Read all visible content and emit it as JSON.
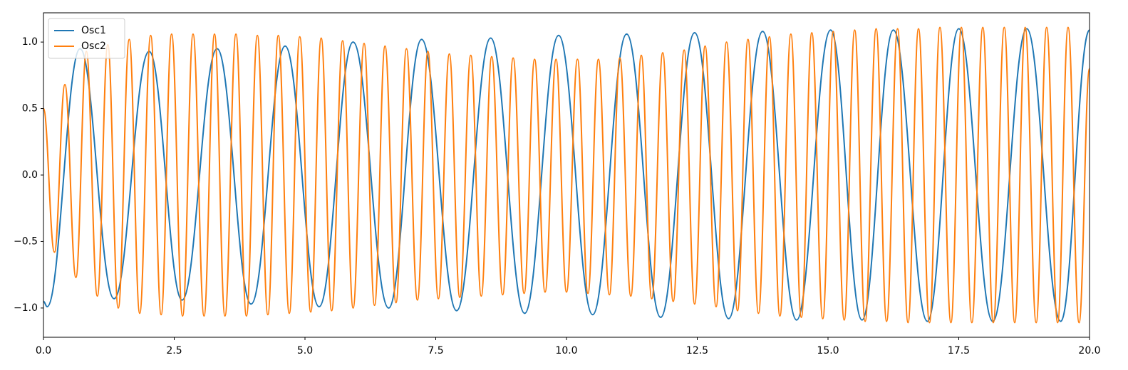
{
  "chart_data": {
    "type": "line",
    "xlim": [
      0,
      20
    ],
    "xticks": [
      {
        "value": 0,
        "label": "0.0"
      },
      2.5,
      {
        "value": 5,
        "label": "5.0"
      },
      7.5,
      {
        "value": 10,
        "label": "10.0"
      },
      12.5,
      {
        "value": 15,
        "label": "15.0"
      },
      17.5,
      {
        "value": 20,
        "label": "20.0"
      }
    ],
    "ylim": [
      -1.22,
      1.22
    ],
    "yticks": [
      {
        "value": -1,
        "label": "−1.0"
      },
      {
        "value": -0.5,
        "label": "−0.5"
      },
      {
        "value": 0,
        "label": "0.0"
      },
      0.5,
      {
        "value": 1,
        "label": "1.0"
      }
    ],
    "legend": "upper left",
    "series": [
      {
        "name": "Osc1",
        "color": "#1f77b4",
        "x": [
          0,
          0.07,
          0.7,
          1.35,
          2.02,
          2.65,
          3.32,
          3.97,
          4.62,
          5.27,
          5.92,
          6.6,
          7.23,
          7.9,
          8.55,
          9.2,
          9.85,
          10.5,
          11.15,
          11.8,
          12.45,
          13.1,
          13.75,
          14.4,
          15.05,
          15.65,
          16.25,
          16.9,
          17.5,
          18.15,
          18.8,
          19.45,
          20.0
        ],
        "values": [
          -0.95,
          -0.99,
          0.95,
          -0.93,
          0.93,
          -0.94,
          0.95,
          -0.97,
          0.97,
          -0.99,
          1.0,
          -1.0,
          1.02,
          -1.02,
          1.03,
          -1.04,
          1.05,
          -1.05,
          1.06,
          -1.07,
          1.07,
          -1.08,
          1.08,
          -1.09,
          1.09,
          -1.09,
          1.09,
          -1.1,
          1.1,
          -1.1,
          1.1,
          -1.1,
          1.09
        ]
      },
      {
        "name": "Osc2",
        "color": "#ff7f0e",
        "x": [
          0,
          0.21,
          0.41,
          0.62,
          0.82,
          1.03,
          1.23,
          1.43,
          1.64,
          1.84,
          2.05,
          2.25,
          2.45,
          2.66,
          2.86,
          3.07,
          3.27,
          3.47,
          3.68,
          3.88,
          4.09,
          4.29,
          4.49,
          4.7,
          4.9,
          5.11,
          5.31,
          5.51,
          5.72,
          5.92,
          6.13,
          6.33,
          6.53,
          6.74,
          6.94,
          7.15,
          7.35,
          7.55,
          7.76,
          7.96,
          8.17,
          8.37,
          8.57,
          8.78,
          8.98,
          9.19,
          9.39,
          9.59,
          9.8,
          10.0,
          10.21,
          10.41,
          10.61,
          10.82,
          11.02,
          11.23,
          11.43,
          11.63,
          11.84,
          12.04,
          12.25,
          12.45,
          12.65,
          12.86,
          13.06,
          13.27,
          13.47,
          13.67,
          13.88,
          14.08,
          14.29,
          14.49,
          14.69,
          14.9,
          15.1,
          15.31,
          15.51,
          15.71,
          15.92,
          16.12,
          16.33,
          16.53,
          16.73,
          16.94,
          17.14,
          17.35,
          17.55,
          17.75,
          17.96,
          18.16,
          18.37,
          18.57,
          18.77,
          18.98,
          19.18,
          19.39,
          19.59,
          19.8,
          20.0
        ],
        "values": [
          0.5,
          -0.58,
          0.68,
          -0.77,
          0.93,
          -0.91,
          0.98,
          -1.0,
          1.02,
          -1.04,
          1.05,
          -1.05,
          1.06,
          -1.06,
          1.06,
          -1.06,
          1.06,
          -1.06,
          1.06,
          -1.06,
          1.05,
          -1.05,
          1.05,
          -1.04,
          1.04,
          -1.03,
          1.03,
          -1.02,
          1.01,
          -1.0,
          0.99,
          -0.98,
          0.97,
          -0.96,
          0.95,
          -0.94,
          0.93,
          -0.93,
          0.91,
          -0.92,
          0.9,
          -0.91,
          0.89,
          -0.9,
          0.88,
          -0.89,
          0.87,
          -0.88,
          0.87,
          -0.88,
          0.87,
          -0.89,
          0.87,
          -0.9,
          0.88,
          -0.91,
          0.9,
          -0.93,
          0.92,
          -0.95,
          0.94,
          -0.97,
          0.97,
          -0.99,
          1.0,
          -1.02,
          1.02,
          -1.04,
          1.04,
          -1.06,
          1.06,
          -1.07,
          1.07,
          -1.08,
          1.08,
          -1.09,
          1.09,
          -1.1,
          1.1,
          -1.1,
          1.1,
          -1.11,
          1.1,
          -1.11,
          1.11,
          -1.11,
          1.11,
          -1.11,
          1.11,
          -1.11,
          1.11,
          -1.11,
          1.11,
          -1.11,
          1.11,
          -1.11,
          1.11,
          -1.11,
          0.8
        ]
      }
    ]
  }
}
